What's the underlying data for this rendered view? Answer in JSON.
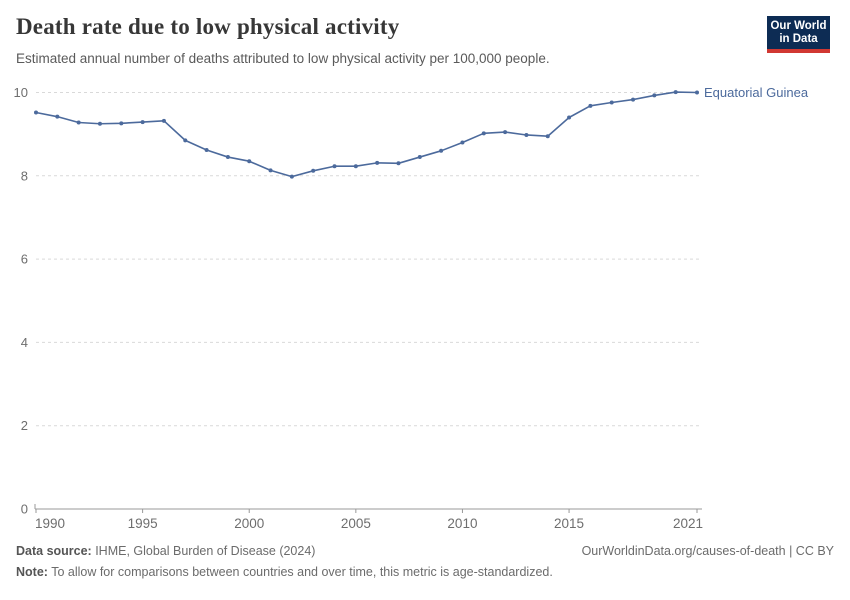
{
  "header": {
    "title": "Death rate due to low physical activity",
    "subtitle": "Estimated annual number of deaths attributed to low physical activity per 100,000 people.",
    "logo": {
      "line1": "Our World",
      "line2": "in Data",
      "bg": "#0d2c54",
      "accent": "#d13832"
    }
  },
  "chart_data": {
    "type": "line",
    "title": "Death rate due to low physical activity",
    "subtitle": "Estimated annual number of deaths attributed to low physical activity per 100,000 people.",
    "xlabel": "",
    "ylabel": "",
    "xlim": [
      1990,
      2021
    ],
    "ylim": [
      0,
      10
    ],
    "yticks": [
      0,
      2,
      4,
      6,
      8,
      10
    ],
    "xticks": [
      1990,
      1995,
      2000,
      2005,
      2010,
      2015,
      2021
    ],
    "grid": "horizontal-dashed",
    "legend_position": "line-end-label",
    "x": [
      1990,
      1991,
      1992,
      1993,
      1994,
      1995,
      1996,
      1997,
      1998,
      1999,
      2000,
      2001,
      2002,
      2003,
      2004,
      2005,
      2006,
      2007,
      2008,
      2009,
      2010,
      2011,
      2012,
      2013,
      2014,
      2015,
      2016,
      2017,
      2018,
      2019,
      2020,
      2021
    ],
    "series": [
      {
        "name": "Equatorial Guinea",
        "color": "#4c6a9c",
        "values": [
          9.52,
          9.42,
          9.28,
          9.25,
          9.26,
          9.29,
          9.32,
          8.85,
          8.62,
          8.45,
          8.35,
          8.13,
          7.98,
          8.12,
          8.23,
          8.23,
          8.31,
          8.3,
          8.45,
          8.6,
          8.8,
          9.02,
          9.05,
          8.98,
          8.95,
          9.4,
          9.68,
          9.76,
          9.83,
          9.93,
          10.01,
          10.0
        ]
      }
    ],
    "colors": {
      "line": "#4c6a9c",
      "grid": "#d9d9d9",
      "axis": "#999999",
      "tick_text": "#6e6e6e"
    }
  },
  "footer": {
    "datasource_label": "Data source:",
    "datasource_value": " IHME, Global Burden of Disease (2024)",
    "credit": "OurWorldinData.org/causes-of-death | CC BY",
    "note_label": "Note:",
    "note_value": " To allow for comparisons between countries and over time, this metric is age-standardized."
  }
}
